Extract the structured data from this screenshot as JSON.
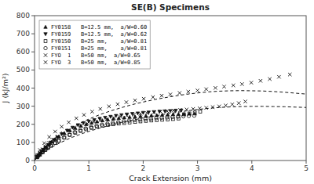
{
  "chart_data": {
    "type": "scatter",
    "title": "SE(B) Specimens",
    "xlabel": "Crack Extension (mm)",
    "ylabel": "J (kJ/m²)",
    "xlim": [
      0,
      5.0
    ],
    "ylim": [
      0,
      800
    ],
    "xticks": [
      0.0,
      1.0,
      2.0,
      3.0,
      4.0,
      5.0
    ],
    "yticks": [
      0,
      100,
      200,
      300,
      400,
      500,
      600,
      700,
      800
    ],
    "grid": false,
    "legend": "upper left",
    "series": [
      {
        "name": "FY0158   B=12.5 mm,  a/W=0.60",
        "marker": "triangle-up",
        "color": "#111111",
        "x": [
          0.04,
          0.07,
          0.09,
          0.12,
          0.15,
          0.18,
          0.22,
          0.27,
          0.32,
          0.38,
          0.45,
          0.55,
          0.65,
          0.75,
          0.85,
          0.95,
          1.05,
          1.15,
          1.25,
          1.35,
          1.45,
          1.55,
          1.65,
          1.75,
          1.85,
          1.95,
          2.05,
          2.15,
          2.25,
          2.35,
          2.45,
          2.55,
          2.65,
          2.75,
          2.85,
          2.95
        ],
        "values": [
          18,
          26,
          34,
          44,
          55,
          65,
          75,
          90,
          104,
          118,
          132,
          150,
          166,
          179,
          191,
          200,
          208,
          215,
          221,
          226,
          230,
          234,
          237,
          240,
          242,
          245,
          247,
          249,
          250,
          252,
          253,
          255,
          256,
          257,
          258,
          259
        ]
      },
      {
        "name": "FY0159   B=12.5 mm,  a/W=0.62",
        "marker": "triangle-down",
        "color": "#111111",
        "x": [
          0.04,
          0.07,
          0.1,
          0.13,
          0.16,
          0.2,
          0.25,
          0.3,
          0.36,
          0.42,
          0.5,
          0.6,
          0.7,
          0.8,
          0.9,
          1.0,
          1.1,
          1.2,
          1.3,
          1.4,
          1.5,
          1.6,
          1.7,
          1.8,
          1.9,
          2.0,
          2.1,
          2.2,
          2.3,
          2.4,
          2.5,
          2.6,
          2.7
        ],
        "values": [
          20,
          30,
          40,
          50,
          60,
          72,
          87,
          100,
          114,
          128,
          146,
          165,
          182,
          196,
          207,
          216,
          224,
          231,
          237,
          242,
          247,
          251,
          255,
          258,
          261,
          264,
          266,
          268,
          270,
          272,
          274,
          276,
          277
        ]
      },
      {
        "name": "FY0150   B=25 mm,    a/W=0.81",
        "marker": "square",
        "color": "#111111",
        "x": [
          0.05,
          0.1,
          0.15,
          0.2,
          0.25,
          0.3,
          0.38,
          0.45,
          0.55,
          0.65,
          0.75,
          0.85,
          0.95,
          1.05,
          1.15,
          1.25,
          1.35,
          1.45,
          1.55,
          1.65,
          1.75,
          1.85,
          1.95,
          2.05,
          2.15,
          2.25,
          2.35,
          2.45,
          2.55,
          2.65,
          2.75,
          2.85,
          2.95,
          3.05
        ],
        "values": [
          18,
          32,
          45,
          58,
          70,
          81,
          96,
          109,
          126,
          141,
          153,
          163,
          172,
          180,
          186,
          192,
          196,
          200,
          204,
          207,
          210,
          213,
          216,
          219,
          221,
          223,
          225,
          227,
          229,
          232,
          255,
          260,
          265,
          270
        ]
      },
      {
        "name": "FY0151   B=25 mm,    a/W=0.81",
        "marker": "circle",
        "color": "#111111",
        "x": [
          0.05,
          0.1,
          0.15,
          0.2,
          0.25,
          0.3,
          0.37,
          0.44,
          0.54,
          0.64,
          0.74,
          0.84,
          0.94,
          1.04,
          1.14,
          1.24,
          1.34,
          1.44,
          1.54,
          1.64,
          1.74,
          1.84,
          1.94,
          2.04,
          2.14,
          2.24,
          2.34,
          2.44,
          2.54,
          2.64,
          2.74,
          2.84,
          2.94
        ],
        "values": [
          20,
          36,
          50,
          62,
          74,
          84,
          97,
          109,
          127,
          143,
          157,
          168,
          177,
          185,
          192,
          198,
          203,
          208,
          212,
          216,
          220,
          223,
          226,
          229,
          231,
          234,
          236,
          238,
          240,
          242,
          244,
          246,
          248
        ]
      },
      {
        "name": "FYO  1   B=50 mm,  a/W=0.65",
        "marker": "x",
        "color": "#111111",
        "x": [
          0.05,
          0.1,
          0.15,
          0.2,
          0.27,
          0.34,
          0.42,
          0.52,
          0.63,
          0.74,
          0.86,
          0.97,
          1.09,
          1.21,
          1.33,
          1.46,
          1.58,
          1.7,
          1.83,
          1.95,
          2.07,
          2.2,
          2.32,
          2.44,
          2.56,
          2.68,
          2.8,
          2.92,
          3.04,
          3.16,
          3.28,
          3.4,
          3.52,
          3.64,
          3.76,
          3.88
        ],
        "values": [
          24,
          44,
          62,
          78,
          98,
          116,
          133,
          151,
          166,
          180,
          193,
          204,
          213,
          222,
          229,
          236,
          242,
          248,
          253,
          258,
          262,
          266,
          270,
          273,
          276,
          279,
          282,
          285,
          288,
          291,
          295,
          299,
          304,
          310,
          317,
          326
        ]
      },
      {
        "name": "FYO  3   B=50 mm,  a/W=0.85",
        "marker": "x",
        "color": "#111111",
        "x": [
          0.05,
          0.1,
          0.18,
          0.27,
          0.38,
          0.5,
          0.63,
          0.77,
          0.91,
          1.06,
          1.21,
          1.37,
          1.53,
          1.69,
          1.85,
          2.01,
          2.18,
          2.34,
          2.5,
          2.67,
          2.83,
          3.0,
          3.16,
          3.33,
          3.49,
          3.66,
          3.82,
          3.99,
          4.16,
          4.33,
          4.5,
          4.7
        ],
        "values": [
          30,
          58,
          96,
          130,
          160,
          187,
          211,
          233,
          252,
          270,
          285,
          299,
          311,
          322,
          332,
          341,
          350,
          358,
          365,
          373,
          380,
          387,
          394,
          401,
          408,
          415,
          422,
          430,
          440,
          450,
          462,
          475
        ]
      },
      {
        "type": "line",
        "line_style": "dashed",
        "color": "#111111",
        "x": [
          0.0,
          0.05,
          0.1,
          0.15,
          0.2,
          0.3,
          0.4,
          0.5,
          0.6,
          0.7,
          0.8,
          0.9,
          1.0,
          1.2,
          1.4,
          1.6,
          1.8,
          2.0,
          2.2,
          2.4,
          2.6,
          2.8,
          3.0,
          3.2,
          3.4,
          3.6,
          3.8,
          4.0,
          4.2,
          4.4,
          4.6,
          4.8,
          5.0
        ],
        "values": [
          0,
          16,
          28,
          40,
          51,
          70,
          87,
          102,
          116,
          129,
          140,
          151,
          161,
          179,
          195,
          210,
          223,
          235,
          246,
          256,
          265,
          274,
          282,
          288,
          293,
          296,
          298,
          299,
          299,
          298,
          297,
          295,
          293
        ]
      },
      {
        "type": "line",
        "line_style": "dashed",
        "color": "#111111",
        "x": [
          0.0,
          0.05,
          0.1,
          0.15,
          0.2,
          0.3,
          0.4,
          0.5,
          0.6,
          0.7,
          0.8,
          0.9,
          1.0,
          1.2,
          1.4,
          1.6,
          1.8,
          2.0,
          2.2,
          2.4,
          2.6,
          2.8,
          3.0,
          3.2,
          3.4,
          3.6,
          3.8,
          4.0,
          4.2,
          4.4,
          4.6,
          4.8,
          5.0
        ],
        "values": [
          0,
          24,
          42,
          59,
          74,
          101,
          125,
          147,
          166,
          184,
          200,
          215,
          229,
          253,
          274,
          292,
          309,
          323,
          336,
          347,
          357,
          366,
          373,
          379,
          383,
          385,
          386,
          385,
          384,
          381,
          377,
          372,
          367
        ]
      }
    ]
  }
}
